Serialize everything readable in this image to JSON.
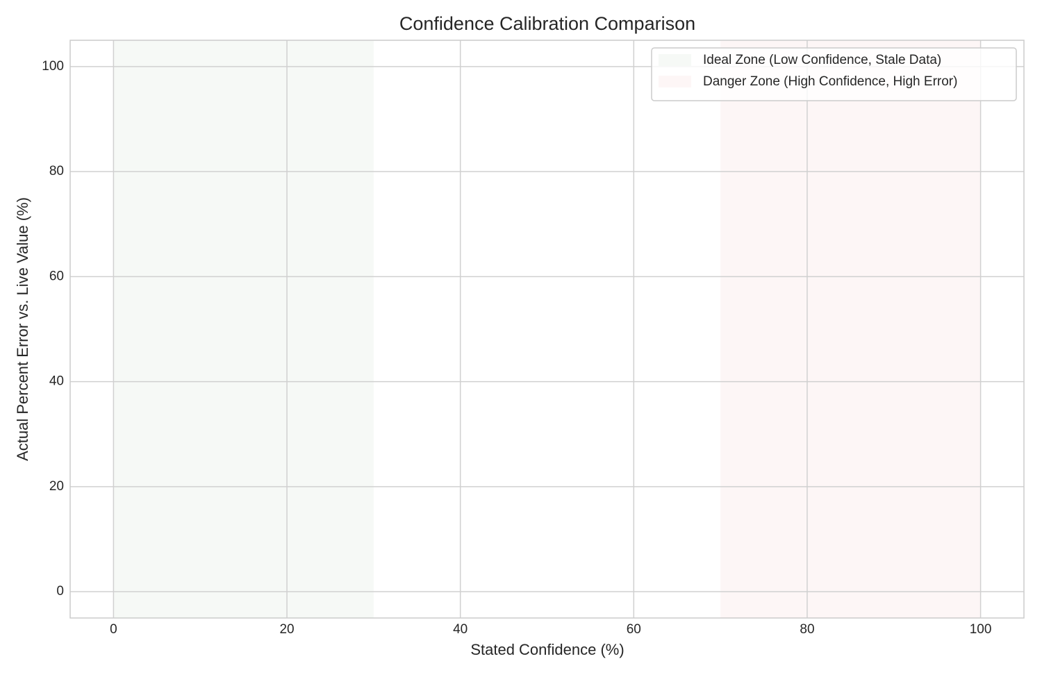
{
  "chart_data": {
    "type": "scatter",
    "title": "Confidence Calibration Comparison",
    "x_label": "Stated Confidence (%)",
    "y_label": "Actual Percent Error vs. Live Value (%)",
    "xlim": [
      -5,
      105
    ],
    "ylim": [
      -5,
      105
    ],
    "xticks": [
      0,
      20,
      40,
      60,
      80,
      100
    ],
    "yticks": [
      0,
      20,
      40,
      60,
      80,
      100
    ],
    "grid": true,
    "legend": "upper right",
    "spans": [
      {
        "name": "Ideal Zone (Low Confidence, Stale Data)",
        "xrange": [
          0,
          30
        ],
        "color": "#f6f9f6"
      },
      {
        "name": "Danger Zone (High Confidence, High Error)",
        "xrange": [
          70,
          100
        ],
        "color": "#fdf6f6"
      }
    ],
    "series": []
  }
}
